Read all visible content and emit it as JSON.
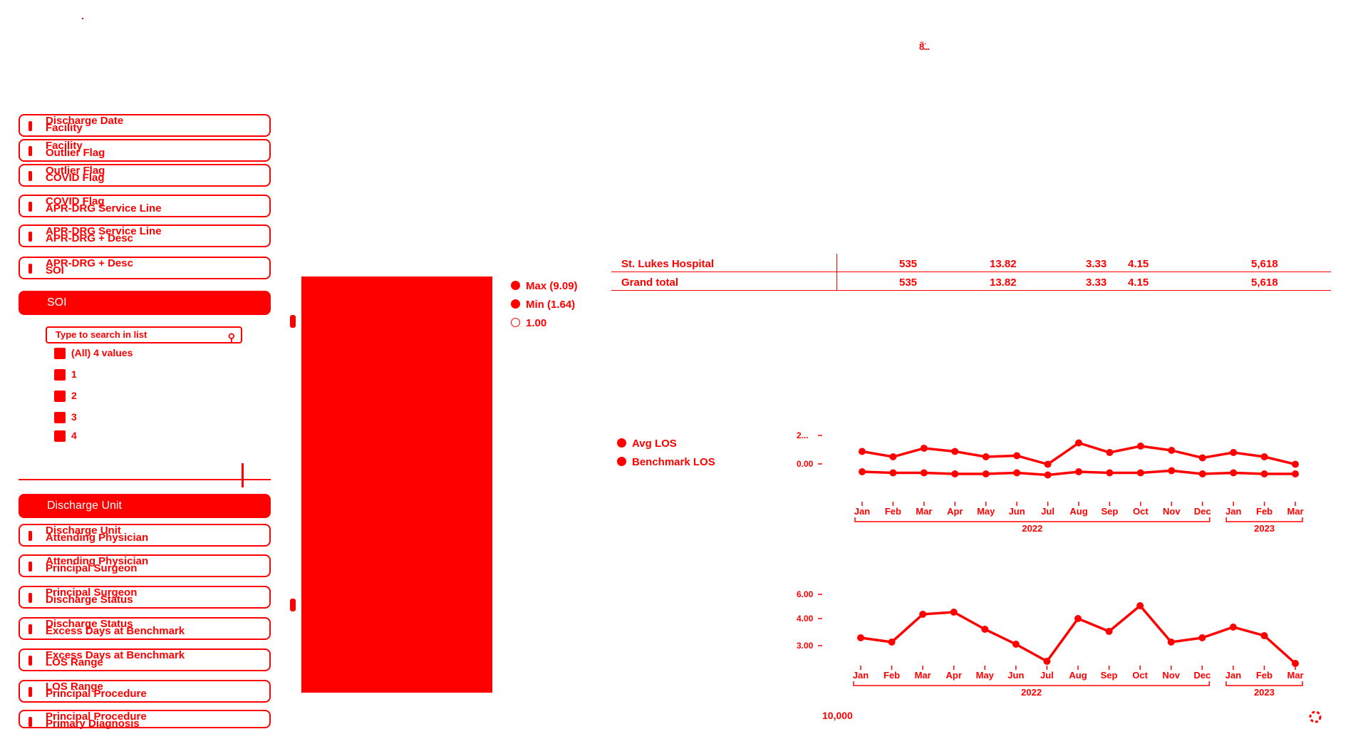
{
  "top_text": "8̈̃...",
  "filters_top": [
    {
      "label1": "Discharge Date",
      "label2": "Facility"
    },
    {
      "label1": "Facility",
      "label2": "Outlier Flag"
    },
    {
      "label1": "Outlier Flag",
      "label2": "COVID Flag"
    },
    {
      "label1": "COVID Flag",
      "label2": "APR-DRG Service Line"
    },
    {
      "label1": "APR-DRG Service Line",
      "label2": "APR-DRG + Desc"
    },
    {
      "label1": "APR-DRG + Desc",
      "label2": "SOI"
    }
  ],
  "soi_header": "SOI",
  "search_placeholder": "Type to search in list",
  "checkbox_items": [
    "(All) 4 values",
    "1",
    "2",
    "3",
    "4"
  ],
  "discharge_unit_header": "Discharge Unit",
  "filters_bottom": [
    {
      "label1": "Discharge Unit",
      "label2": "Attending Physician"
    },
    {
      "label1": "Attending Physician",
      "label2": "Principal Surgeon"
    },
    {
      "label1": "Principal Surgeon",
      "label2": "Discharge Status"
    },
    {
      "label1": "Discharge Status",
      "label2": "Excess Days at Benchmark"
    },
    {
      "label1": "Excess Days at Benchmark",
      "label2": "LOS Range"
    },
    {
      "label1": "LOS Range",
      "label2": "Principal Procedure"
    },
    {
      "label1": "Principal Procedure",
      "label2": "Primary Diagnosis"
    }
  ],
  "legend_top": [
    {
      "label": "Max (9.09)",
      "hollow": false
    },
    {
      "label": "Min (1.64)",
      "hollow": false
    },
    {
      "label": "1.00",
      "hollow": true
    }
  ],
  "table": {
    "rows": [
      {
        "name": "St. Lukes Hospital",
        "c1": "535",
        "c2": "13.82",
        "c3": "3.33",
        "c4": "4.15",
        "c5": "5,618"
      },
      {
        "name": "Grand total",
        "c1": "535",
        "c2": "13.82",
        "c3": "3.33",
        "c4": "4.15",
        "c5": "5,618"
      }
    ]
  },
  "legend_los": [
    {
      "label": "Avg LOS"
    },
    {
      "label": "Benchmark LOS"
    }
  ],
  "chart_data": [
    {
      "type": "line",
      "x": [
        "Jan",
        "Feb",
        "Mar",
        "Apr",
        "May",
        "Jun",
        "Jul",
        "Aug",
        "Sep",
        "Oct",
        "Nov",
        "Dec",
        "Jan",
        "Feb",
        "Mar"
      ],
      "year_groups": [
        {
          "label": "2022",
          "span": 12
        },
        {
          "label": "2023",
          "span": 3
        }
      ],
      "ytick_labels": [
        "2...",
        "0.00"
      ],
      "series": [
        {
          "name": "Avg LOS",
          "values": [
            4.1,
            3.6,
            4.4,
            4.1,
            3.6,
            3.7,
            2.9,
            4.9,
            4.0,
            4.6,
            4.2,
            3.5,
            4.0,
            3.6,
            2.9
          ]
        },
        {
          "name": "Benchmark LOS",
          "values": [
            2.2,
            2.1,
            2.1,
            2.0,
            2.0,
            2.1,
            1.9,
            2.2,
            2.1,
            2.1,
            2.3,
            2.0,
            2.1,
            2.0,
            2.0
          ]
        }
      ],
      "ylim": [
        0,
        6
      ]
    },
    {
      "type": "line",
      "x": [
        "Jan",
        "Feb",
        "Mar",
        "Apr",
        "May",
        "Jun",
        "Jul",
        "Aug",
        "Sep",
        "Oct",
        "Nov",
        "Dec",
        "Jan",
        "Feb",
        "Mar"
      ],
      "year_groups": [
        {
          "label": "2022",
          "span": 12
        },
        {
          "label": "2023",
          "span": 3
        }
      ],
      "ytick_labels": [
        "6.00",
        "4.00",
        "3.00"
      ],
      "series": [
        {
          "values": [
            4.0,
            3.8,
            5.1,
            5.2,
            4.4,
            3.7,
            2.9,
            4.9,
            4.3,
            5.5,
            3.8,
            4.0,
            4.5,
            4.1,
            2.8
          ]
        }
      ],
      "ylim": [
        2.5,
        6.5
      ]
    }
  ],
  "bottom_value": "10,000"
}
